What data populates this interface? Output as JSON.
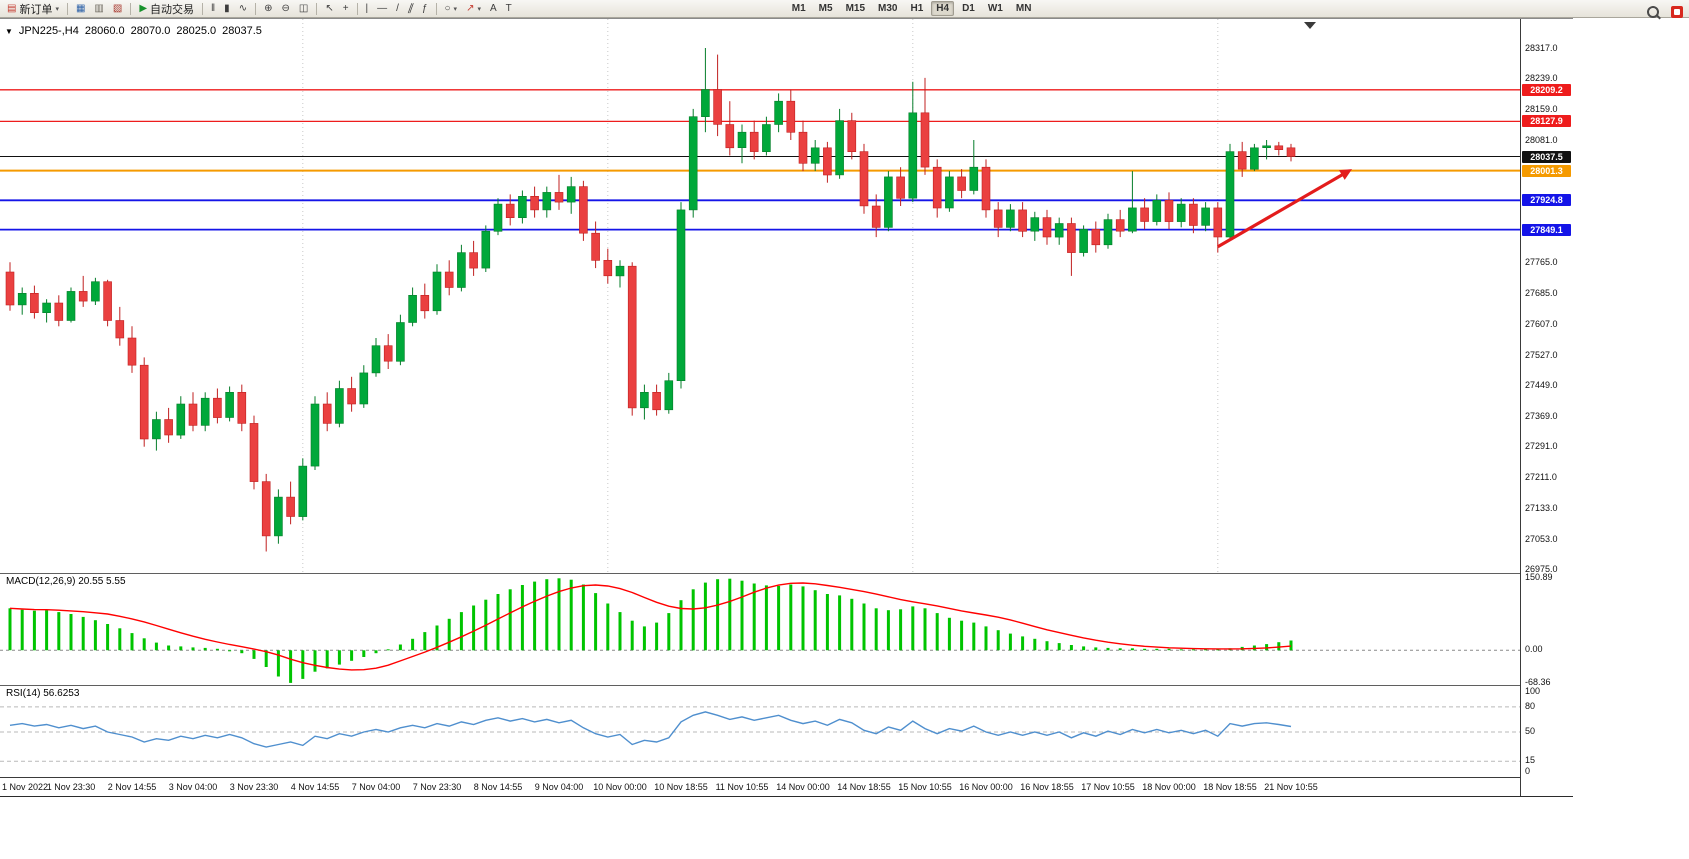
{
  "toolbar": {
    "new_order_label": "新订单",
    "autotrading_label": "自动交易",
    "timeframes": [
      "M1",
      "M5",
      "M15",
      "M30",
      "H1",
      "H4",
      "D1",
      "W1",
      "MN"
    ],
    "active_timeframe": "H4",
    "tools": [
      {
        "type": "button",
        "name": "new-order-button",
        "glyph": "▤",
        "glyph_color": "#c43a2f",
        "label_key": "new_order_label",
        "caret": true
      },
      {
        "type": "separator"
      },
      {
        "type": "icon",
        "name": "charts-icon-button",
        "glyph": "▦",
        "glyph_color": "#2e62a8"
      },
      {
        "type": "icon",
        "name": "profiles-icon-button",
        "glyph": "▥",
        "glyph_color": "#6b675d"
      },
      {
        "type": "icon",
        "name": "market-watch-icon-button",
        "glyph": "▧",
        "glyph_color": "#a8372e"
      },
      {
        "type": "separator"
      },
      {
        "type": "button",
        "name": "autotrading-button",
        "glyph": "▶",
        "glyph_color": "#18922c",
        "label_key": "autotrading_label"
      },
      {
        "type": "separator"
      },
      {
        "type": "icon",
        "name": "bars-chart-icon-button",
        "glyph": "‖",
        "glyph_color": "#3d3d3d"
      },
      {
        "type": "icon",
        "name": "candlestick-chart-icon-button",
        "glyph": "▮",
        "glyph_color": "#3d3d3d"
      },
      {
        "type": "icon",
        "name": "line-chart-icon-button",
        "glyph": "∿",
        "glyph_color": "#3d3d3d"
      },
      {
        "type": "separator"
      },
      {
        "type": "icon",
        "name": "zoom-in-icon-button",
        "glyph": "⊕",
        "glyph_color": "#3d3d3d"
      },
      {
        "type": "icon",
        "name": "zoom-out-icon-button",
        "glyph": "⊖",
        "glyph_color": "#3d3d3d"
      },
      {
        "type": "icon",
        "name": "tile-windows-icon-button",
        "glyph": "◫",
        "glyph_color": "#3d3d3d"
      },
      {
        "type": "separator"
      },
      {
        "type": "icon",
        "name": "cursor-icon-button",
        "glyph": "↖",
        "glyph_color": "#3d3d3d"
      },
      {
        "type": "icon",
        "name": "crosshair-icon-button",
        "glyph": "+",
        "glyph_color": "#3d3d3d"
      },
      {
        "type": "separator"
      },
      {
        "type": "icon",
        "name": "vertical-line-icon-button",
        "glyph": "|",
        "glyph_color": "#3d3d3d"
      },
      {
        "type": "icon",
        "name": "horizontal-line-icon-button",
        "glyph": "—",
        "glyph_color": "#3d3d3d"
      },
      {
        "type": "icon",
        "name": "trendline-icon-button",
        "glyph": "/",
        "glyph_color": "#3d3d3d"
      },
      {
        "type": "icon",
        "name": "channel-icon-button",
        "glyph": "∥",
        "glyph_color": "#3d3d3d",
        "skew": true
      },
      {
        "type": "icon",
        "name": "fibonacci-icon-button",
        "glyph": "ƒ",
        "glyph_color": "#3d3d3d"
      },
      {
        "type": "separator"
      },
      {
        "type": "icon",
        "name": "shapes-icon-button",
        "glyph": "○",
        "glyph_color": "#3d3d3d",
        "caret": true
      },
      {
        "type": "icon",
        "name": "arrows-icon-button",
        "glyph": "↗",
        "glyph_color": "#c43a2f",
        "caret": true
      },
      {
        "type": "icon",
        "name": "text-icon-button",
        "glyph": "A",
        "glyph_color": "#3d3d3d"
      },
      {
        "type": "icon",
        "name": "text-label-icon-button",
        "glyph": "T",
        "glyph_color": "#3d3d3d"
      },
      {
        "type": "spacer"
      },
      {
        "type": "timeframes"
      }
    ]
  },
  "chart_header": {
    "collapse_icon": "▼",
    "symbol": "JPN225-,H4",
    "open": "28060.0",
    "high": "28070.0",
    "low": "28025.0",
    "close": "28037.5"
  },
  "price_axis": {
    "ticks": [
      "28317.0",
      "28239.0",
      "28159.0",
      "28081.0",
      "27765.0",
      "27685.0",
      "27607.0",
      "27527.0",
      "27449.0",
      "27369.0",
      "27291.0",
      "27211.0",
      "27133.0",
      "27053.0",
      "26975.0"
    ],
    "badges": [
      {
        "value": "28209.2",
        "color": "#ee1c1c"
      },
      {
        "value": "28127.9",
        "color": "#ee1c1c"
      },
      {
        "value": "28037.5",
        "color": "#111111"
      },
      {
        "value": "28001.3",
        "color": "#f59a00"
      },
      {
        "value": "27924.8",
        "color": "#1414e8"
      },
      {
        "value": "27849.1",
        "color": "#1414e8"
      }
    ]
  },
  "colors": {
    "up": "#00a83a",
    "up_border": "#067d2a",
    "down": "#ea4040",
    "down_border": "#c02020"
  },
  "chart_data": {
    "type": "candlestick",
    "symbol": "JPN225-",
    "timeframe": "H4",
    "last_ohlc": {
      "open": 28060.0,
      "high": 28070.0,
      "low": 28025.0,
      "close": 28037.5
    },
    "y_axis": {
      "min": 26975.0,
      "max": 28317.0
    },
    "label_every_n_candles": 5,
    "time_labels": [
      "1 Nov 2022",
      "1 Nov 23:30",
      "2 Nov 14:55",
      "3 Nov 04:00",
      "3 Nov 23:30",
      "4 Nov 14:55",
      "7 Nov 04:00",
      "7 Nov 23:30",
      "8 Nov 14:55",
      "9 Nov 04:00",
      "10 Nov 00:00",
      "10 Nov 18:55",
      "11 Nov 10:55",
      "14 Nov 00:00",
      "14 Nov 18:55",
      "15 Nov 10:55",
      "16 Nov 00:00",
      "16 Nov 18:55",
      "17 Nov 10:55",
      "18 Nov 00:00",
      "18 Nov 18:55",
      "21 Nov 10:55"
    ],
    "period_separators_at": [
      24,
      49,
      74,
      99
    ],
    "horizontal_lines": [
      {
        "price": 28209.2,
        "color": "#ee1c1c",
        "width": 1.3,
        "role": "resistance"
      },
      {
        "price": 28127.9,
        "color": "#ee1c1c",
        "width": 1.3,
        "role": "resistance"
      },
      {
        "price": 28037.5,
        "color": "#111111",
        "width": 1,
        "role": "last-price"
      },
      {
        "price": 28001.3,
        "color": "#f59a00",
        "width": 2,
        "role": "pivot"
      },
      {
        "price": 27924.8,
        "color": "#1414e8",
        "width": 1.8,
        "role": "support"
      },
      {
        "price": 27849.1,
        "color": "#1414e8",
        "width": 1.8,
        "role": "support"
      }
    ],
    "arrow_annotation": {
      "from": {
        "index": 99,
        "price": 27805
      },
      "to": {
        "index": 110,
        "price": 28005
      },
      "color": "#e31c1c"
    },
    "candles": [
      [
        27740,
        27765,
        27640,
        27655
      ],
      [
        27655,
        27700,
        27630,
        27685
      ],
      [
        27685,
        27705,
        27620,
        27635
      ],
      [
        27635,
        27670,
        27610,
        27660
      ],
      [
        27660,
        27680,
        27600,
        27615
      ],
      [
        27615,
        27700,
        27610,
        27690
      ],
      [
        27690,
        27730,
        27650,
        27665
      ],
      [
        27665,
        27725,
        27655,
        27715
      ],
      [
        27715,
        27720,
        27600,
        27615
      ],
      [
        27615,
        27650,
        27550,
        27570
      ],
      [
        27570,
        27600,
        27480,
        27500
      ],
      [
        27500,
        27520,
        27290,
        27310
      ],
      [
        27310,
        27380,
        27280,
        27360
      ],
      [
        27360,
        27390,
        27300,
        27320
      ],
      [
        27320,
        27420,
        27310,
        27400
      ],
      [
        27400,
        27430,
        27330,
        27345
      ],
      [
        27345,
        27430,
        27330,
        27415
      ],
      [
        27415,
        27440,
        27350,
        27365
      ],
      [
        27365,
        27445,
        27355,
        27430
      ],
      [
        27430,
        27450,
        27330,
        27350
      ],
      [
        27350,
        27370,
        27180,
        27200
      ],
      [
        27200,
        27220,
        27020,
        27060
      ],
      [
        27060,
        27180,
        27040,
        27160
      ],
      [
        27160,
        27200,
        27090,
        27110
      ],
      [
        27110,
        27260,
        27100,
        27240
      ],
      [
        27240,
        27420,
        27230,
        27400
      ],
      [
        27400,
        27430,
        27330,
        27350
      ],
      [
        27350,
        27460,
        27340,
        27440
      ],
      [
        27440,
        27470,
        27380,
        27400
      ],
      [
        27400,
        27500,
        27390,
        27480
      ],
      [
        27480,
        27570,
        27470,
        27550
      ],
      [
        27550,
        27580,
        27490,
        27510
      ],
      [
        27510,
        27630,
        27500,
        27610
      ],
      [
        27610,
        27700,
        27600,
        27680
      ],
      [
        27680,
        27710,
        27620,
        27640
      ],
      [
        27640,
        27760,
        27630,
        27740
      ],
      [
        27740,
        27770,
        27680,
        27700
      ],
      [
        27700,
        27810,
        27690,
        27790
      ],
      [
        27790,
        27820,
        27730,
        27750
      ],
      [
        27750,
        27860,
        27740,
        27845
      ],
      [
        27845,
        27930,
        27835,
        27915
      ],
      [
        27915,
        27940,
        27860,
        27880
      ],
      [
        27880,
        27950,
        27865,
        27935
      ],
      [
        27935,
        27960,
        27880,
        27900
      ],
      [
        27900,
        27960,
        27880,
        27945
      ],
      [
        27945,
        27990,
        27900,
        27920
      ],
      [
        27920,
        27985,
        27890,
        27960
      ],
      [
        27960,
        27975,
        27820,
        27840
      ],
      [
        27840,
        27870,
        27750,
        27770
      ],
      [
        27770,
        27800,
        27710,
        27730
      ],
      [
        27730,
        27770,
        27700,
        27755
      ],
      [
        27755,
        27765,
        27370,
        27390
      ],
      [
        27390,
        27450,
        27360,
        27430
      ],
      [
        27430,
        27450,
        27370,
        27385
      ],
      [
        27385,
        27480,
        27375,
        27460
      ],
      [
        27460,
        27920,
        27440,
        27900
      ],
      [
        27900,
        28160,
        27880,
        28140
      ],
      [
        28140,
        28317,
        28100,
        28210
      ],
      [
        28210,
        28300,
        28090,
        28120
      ],
      [
        28120,
        28180,
        28040,
        28060
      ],
      [
        28060,
        28120,
        28020,
        28100
      ],
      [
        28100,
        28130,
        28030,
        28050
      ],
      [
        28050,
        28140,
        28040,
        28120
      ],
      [
        28120,
        28200,
        28100,
        28180
      ],
      [
        28180,
        28210,
        28080,
        28100
      ],
      [
        28100,
        28130,
        28000,
        28020
      ],
      [
        28020,
        28080,
        28000,
        28060
      ],
      [
        28060,
        28075,
        27970,
        27990
      ],
      [
        27990,
        28160,
        27980,
        28130
      ],
      [
        28130,
        28150,
        28030,
        28050
      ],
      [
        28050,
        28070,
        27890,
        27910
      ],
      [
        27910,
        27940,
        27830,
        27855
      ],
      [
        27855,
        28000,
        27845,
        27985
      ],
      [
        27985,
        28010,
        27910,
        27930
      ],
      [
        27930,
        28230,
        27920,
        28150
      ],
      [
        28150,
        28240,
        27990,
        28010
      ],
      [
        28010,
        28030,
        27880,
        27905
      ],
      [
        27905,
        28000,
        27895,
        27985
      ],
      [
        27985,
        28005,
        27930,
        27950
      ],
      [
        27950,
        28080,
        27940,
        28010
      ],
      [
        28010,
        28030,
        27880,
        27900
      ],
      [
        27900,
        27920,
        27830,
        27855
      ],
      [
        27855,
        27915,
        27845,
        27900
      ],
      [
        27900,
        27920,
        27830,
        27845
      ],
      [
        27845,
        27895,
        27820,
        27880
      ],
      [
        27880,
        27900,
        27810,
        27830
      ],
      [
        27830,
        27880,
        27810,
        27865
      ],
      [
        27865,
        27880,
        27730,
        27790
      ],
      [
        27790,
        27860,
        27780,
        27850
      ],
      [
        27850,
        27870,
        27790,
        27810
      ],
      [
        27810,
        27890,
        27800,
        27875
      ],
      [
        27875,
        27900,
        27830,
        27845
      ],
      [
        27845,
        28000,
        27840,
        27905
      ],
      [
        27905,
        27930,
        27850,
        27870
      ],
      [
        27870,
        27940,
        27860,
        27925
      ],
      [
        27925,
        27945,
        27850,
        27870
      ],
      [
        27870,
        27930,
        27855,
        27915
      ],
      [
        27915,
        27930,
        27840,
        27860
      ],
      [
        27860,
        27920,
        27845,
        27905
      ],
      [
        27905,
        27920,
        27790,
        27830
      ],
      [
        27830,
        28070,
        27820,
        28050
      ],
      [
        28050,
        28075,
        27985,
        28005
      ],
      [
        28005,
        28070,
        28000,
        28060
      ],
      [
        28060,
        28080,
        28030,
        28065
      ],
      [
        28065,
        28075,
        28040,
        28055
      ],
      [
        28060,
        28070,
        28025,
        28037.5
      ]
    ],
    "macd": {
      "label": "MACD(12,26,9) 20.55 5.55",
      "params": [
        12,
        26,
        9
      ],
      "main_value": 20.55,
      "signal_value": 5.55,
      "scale_labels": [
        "150.89",
        "0.00",
        "-68.36"
      ],
      "histogram_color": "#00c400",
      "signal_color": "#ff0000",
      "signal_period": 9,
      "histogram": [
        88,
        85,
        83,
        84,
        80,
        76,
        70,
        63,
        55,
        46,
        36,
        25,
        16,
        10,
        8,
        6,
        5,
        3,
        0,
        -6,
        -18,
        -35,
        -55,
        -68.36,
        -60,
        -45,
        -38,
        -30,
        -22,
        -14,
        -6,
        2,
        12,
        24,
        38,
        52,
        66,
        80,
        94,
        106,
        118,
        128,
        137,
        144,
        149,
        150.89,
        148,
        138,
        120,
        98,
        80,
        62,
        50,
        58,
        78,
        105,
        128,
        142,
        149,
        150.2,
        146,
        140,
        136,
        135,
        138,
        134,
        126,
        118,
        115,
        108,
        98,
        88,
        84,
        86,
        92,
        88,
        78,
        68,
        62,
        58,
        50,
        42,
        35,
        29,
        24,
        19,
        15,
        11,
        8,
        6,
        5,
        4,
        4,
        3,
        3,
        3,
        2,
        2,
        2,
        2,
        4,
        7,
        10,
        13,
        17,
        20.55
      ]
    },
    "rsi": {
      "label": "RSI(14) 56.6253",
      "period": 14,
      "value": 56.6253,
      "levels": [
        80,
        50,
        15
      ],
      "scale_labels": [
        100,
        80,
        50,
        15,
        0
      ],
      "line_color": "#4f8fce",
      "values": [
        58,
        60,
        57,
        59,
        55,
        58,
        54,
        57,
        50,
        47,
        44,
        38,
        42,
        40,
        45,
        42,
        46,
        43,
        47,
        43,
        36,
        32,
        35,
        38,
        34,
        45,
        42,
        48,
        45,
        50,
        53,
        50,
        55,
        58,
        55,
        60,
        57,
        62,
        59,
        64,
        67,
        63,
        66,
        62,
        65,
        61,
        64,
        55,
        48,
        44,
        47,
        35,
        40,
        38,
        43,
        62,
        70,
        74,
        70,
        65,
        68,
        64,
        67,
        70,
        64,
        60,
        63,
        58,
        65,
        61,
        52,
        48,
        56,
        52,
        63,
        54,
        48,
        54,
        51,
        57,
        50,
        46,
        50,
        46,
        50,
        46,
        50,
        43,
        49,
        45,
        51,
        47,
        53,
        49,
        53,
        49,
        52,
        48,
        52,
        45,
        60,
        57,
        60,
        61,
        59,
        56.6
      ]
    }
  }
}
